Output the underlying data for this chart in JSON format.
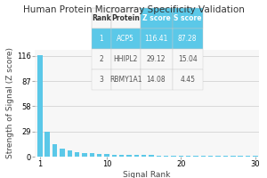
{
  "title": "Human Protein Microarray Specificity Validation",
  "xlabel": "Signal Rank",
  "ylabel": "Strength of Signal (Z score)",
  "bar_color": "#5bc8e8",
  "table_highlight_color": "#5bc8e8",
  "table_highlight_text_color": "#ffffff",
  "table_text_color": "#555555",
  "table_header_text_color": "#333333",
  "background_color": "#ffffff",
  "plot_bg_color": "#f7f7f7",
  "yticks": [
    0,
    29,
    58,
    87,
    116
  ],
  "xticks": [
    1,
    10,
    20,
    30
  ],
  "xlim": [
    0.3,
    30.5
  ],
  "ylim": [
    0,
    123
  ],
  "bar_values": [
    116.41,
    29.12,
    14.08,
    9.5,
    7.0,
    5.5,
    4.5,
    3.8,
    3.2,
    2.8,
    2.5,
    2.2,
    2.0,
    1.85,
    1.7,
    1.6,
    1.5,
    1.4,
    1.3,
    1.2,
    1.15,
    1.1,
    1.05,
    1.0,
    0.95,
    0.9,
    0.85,
    0.8,
    0.75,
    0.7
  ],
  "table_headers": [
    "Rank",
    "Protein",
    "Z score",
    "S score"
  ],
  "table_col_highlight": [
    false,
    false,
    true,
    true
  ],
  "table_rows": [
    [
      "1",
      "ACP5",
      "116.41",
      "87.28"
    ],
    [
      "2",
      "HHIPL2",
      "29.12",
      "15.04"
    ],
    [
      "3",
      "RBMY1A1",
      "14.08",
      "4.45"
    ]
  ],
  "table_highlight_row": 0,
  "title_fontsize": 7.5,
  "axis_fontsize": 6.5,
  "tick_fontsize": 6,
  "table_fontsize": 5.5
}
